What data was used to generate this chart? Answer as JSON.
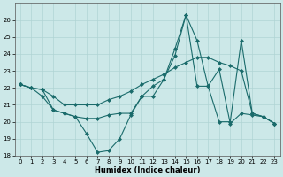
{
  "xlabel": "Humidex (Indice chaleur)",
  "x_values": [
    0,
    1,
    2,
    3,
    4,
    5,
    6,
    7,
    8,
    9,
    10,
    11,
    12,
    13,
    14,
    15,
    16,
    17,
    18,
    19,
    20,
    21,
    22,
    23
  ],
  "line1_y": [
    22.2,
    22.0,
    21.9,
    20.7,
    20.5,
    20.3,
    19.3,
    18.2,
    18.3,
    19.0,
    20.4,
    21.5,
    22.1,
    22.5,
    23.9,
    26.3,
    24.8,
    22.1,
    23.1,
    19.9,
    20.5,
    20.4,
    20.3,
    19.9
  ],
  "line2_y": [
    22.2,
    22.0,
    21.9,
    21.5,
    21.0,
    21.0,
    21.0,
    21.0,
    21.3,
    21.5,
    21.8,
    22.2,
    22.5,
    22.8,
    23.2,
    23.5,
    23.8,
    23.8,
    23.5,
    23.3,
    23.0,
    20.5,
    20.3,
    19.9
  ],
  "line3_y": [
    22.2,
    22.0,
    21.5,
    20.7,
    20.5,
    20.3,
    20.2,
    20.2,
    20.4,
    20.5,
    20.5,
    21.5,
    21.5,
    22.5,
    24.3,
    26.3,
    22.1,
    22.1,
    20.0,
    20.0,
    24.8,
    20.5,
    20.3,
    19.9
  ],
  "ylim": [
    18,
    27
  ],
  "yticks": [
    18,
    19,
    20,
    21,
    22,
    23,
    24,
    25,
    26
  ],
  "xlim": [
    -0.5,
    23.5
  ],
  "bg_color": "#cce8e8",
  "grid_color": "#b0d4d4",
  "line_color": "#1a6b6b",
  "marker": "D",
  "marker_size": 2.0,
  "line_width": 0.8,
  "tick_fontsize": 5.0,
  "xlabel_fontsize": 6.0
}
